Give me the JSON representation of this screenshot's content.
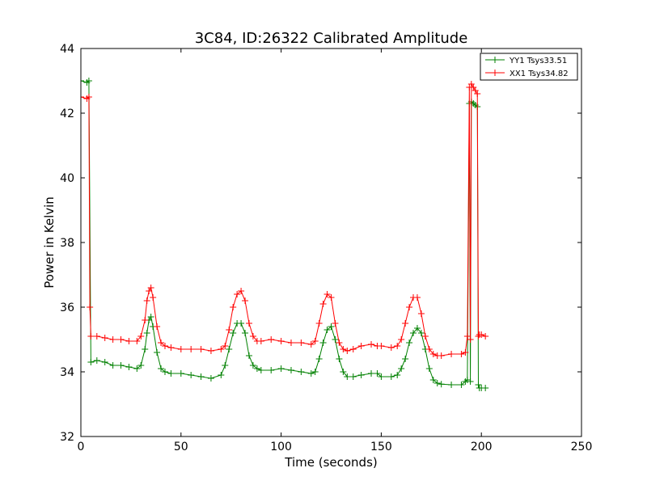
{
  "chart_data": {
    "type": "line",
    "title": "3C84, ID:26322 Calibrated Amplitude",
    "xlabel": "Time (seconds)",
    "ylabel": "Power in Kelvin",
    "xlim": [
      0,
      250
    ],
    "ylim": [
      32,
      44
    ],
    "xticks": [
      0,
      50,
      100,
      150,
      200,
      250
    ],
    "yticks": [
      32,
      34,
      36,
      38,
      40,
      42,
      44
    ],
    "grid": false,
    "legend_position": "top-right",
    "marker": "plus",
    "series": [
      {
        "name": "YY1 Tsys33.51",
        "color": "#008000",
        "x": [
          0,
          3,
          4,
          5,
          8,
          12,
          16,
          20,
          24,
          28,
          30,
          32,
          33,
          34,
          35,
          36,
          38,
          40,
          42,
          45,
          50,
          55,
          60,
          65,
          70,
          72,
          74,
          76,
          78,
          80,
          82,
          84,
          86,
          88,
          90,
          95,
          100,
          105,
          110,
          115,
          117,
          119,
          121,
          123,
          125,
          127,
          129,
          131,
          133,
          136,
          140,
          145,
          148,
          150,
          155,
          158,
          160,
          162,
          164,
          166,
          168,
          170,
          172,
          174,
          176,
          178,
          180,
          185,
          190,
          192,
          193,
          194,
          194.5,
          195,
          196,
          197,
          198,
          198.5,
          199,
          200,
          202
        ],
        "y": [
          43.0,
          42.95,
          43.0,
          34.3,
          34.35,
          34.3,
          34.2,
          34.2,
          34.15,
          34.1,
          34.2,
          34.7,
          35.2,
          35.6,
          35.7,
          35.4,
          34.6,
          34.1,
          34.0,
          33.95,
          33.95,
          33.9,
          33.85,
          33.8,
          33.9,
          34.2,
          34.7,
          35.2,
          35.5,
          35.5,
          35.2,
          34.5,
          34.2,
          34.1,
          34.05,
          34.05,
          34.1,
          34.05,
          34.0,
          33.95,
          34.0,
          34.4,
          34.9,
          35.3,
          35.4,
          35.0,
          34.4,
          34.0,
          33.85,
          33.85,
          33.9,
          33.95,
          33.95,
          33.85,
          33.85,
          33.9,
          34.1,
          34.4,
          34.9,
          35.2,
          35.35,
          35.2,
          34.7,
          34.1,
          33.75,
          33.65,
          33.62,
          33.6,
          33.6,
          33.7,
          33.75,
          42.3,
          33.7,
          42.35,
          42.3,
          42.25,
          42.2,
          33.6,
          33.5,
          33.5,
          33.5
        ]
      },
      {
        "name": "XX1 Tsys34.82",
        "color": "#ff0000",
        "x": [
          0,
          3,
          4,
          4.5,
          5,
          8,
          12,
          16,
          20,
          24,
          28,
          30,
          32,
          33,
          34,
          35,
          36,
          38,
          40,
          42,
          45,
          50,
          55,
          60,
          65,
          70,
          72,
          74,
          76,
          78,
          80,
          82,
          84,
          86,
          88,
          90,
          95,
          100,
          105,
          110,
          115,
          117,
          119,
          121,
          123,
          125,
          127,
          129,
          131,
          133,
          136,
          140,
          145,
          148,
          150,
          155,
          158,
          160,
          162,
          164,
          166,
          168,
          170,
          172,
          174,
          176,
          178,
          180,
          185,
          190,
          192,
          193,
          194,
          194.5,
          195,
          196,
          197,
          198,
          198.5,
          199,
          200,
          202
        ],
        "y": [
          42.5,
          42.45,
          42.5,
          36.0,
          35.1,
          35.1,
          35.05,
          35.0,
          35.0,
          34.95,
          34.95,
          35.1,
          35.6,
          36.2,
          36.5,
          36.6,
          36.3,
          35.4,
          34.9,
          34.8,
          34.75,
          34.7,
          34.7,
          34.7,
          34.65,
          34.7,
          34.8,
          35.3,
          36.0,
          36.4,
          36.5,
          36.2,
          35.5,
          35.1,
          34.95,
          34.95,
          35.0,
          34.95,
          34.9,
          34.9,
          34.85,
          34.95,
          35.5,
          36.1,
          36.4,
          36.3,
          35.5,
          34.9,
          34.7,
          34.65,
          34.7,
          34.8,
          34.85,
          34.8,
          34.8,
          34.75,
          34.8,
          35.0,
          35.5,
          36.0,
          36.3,
          36.3,
          35.8,
          35.1,
          34.7,
          34.55,
          34.5,
          34.5,
          34.55,
          34.55,
          34.6,
          35.1,
          42.8,
          35.0,
          42.9,
          42.8,
          42.7,
          42.6,
          35.1,
          35.15,
          35.15,
          35.1
        ]
      }
    ]
  }
}
